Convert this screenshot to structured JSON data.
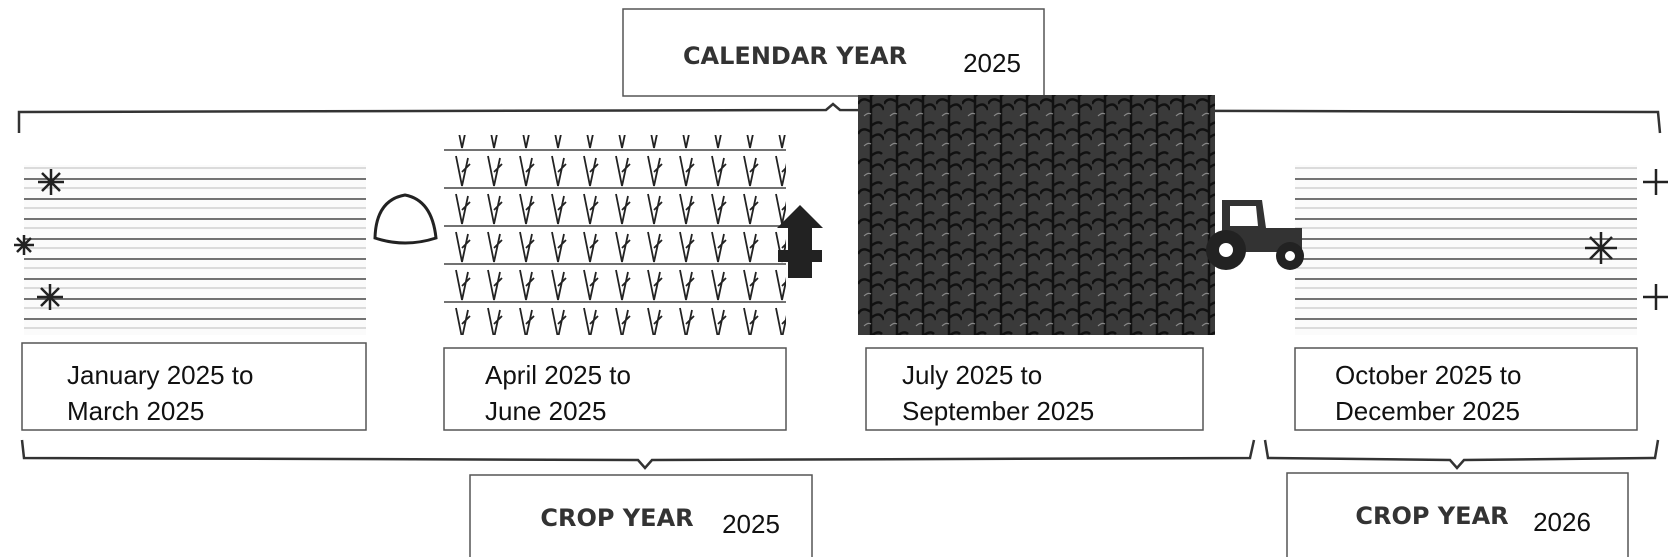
{
  "calendar_year": {
    "label": "CALENDAR YEAR",
    "year": "2025"
  },
  "periods": [
    {
      "lines": [
        "January 2025 to",
        "March 2025"
      ]
    },
    {
      "lines": [
        "April 2025 to",
        "June 2025"
      ]
    },
    {
      "lines": [
        "July 2025 to",
        "September 2025"
      ]
    },
    {
      "lines": [
        "October 2025 to",
        "December 2025"
      ]
    }
  ],
  "crop_years": [
    {
      "label": "CROP YEAR",
      "year": "2025"
    },
    {
      "label": "CROP YEAR",
      "year": "2026"
    }
  ]
}
